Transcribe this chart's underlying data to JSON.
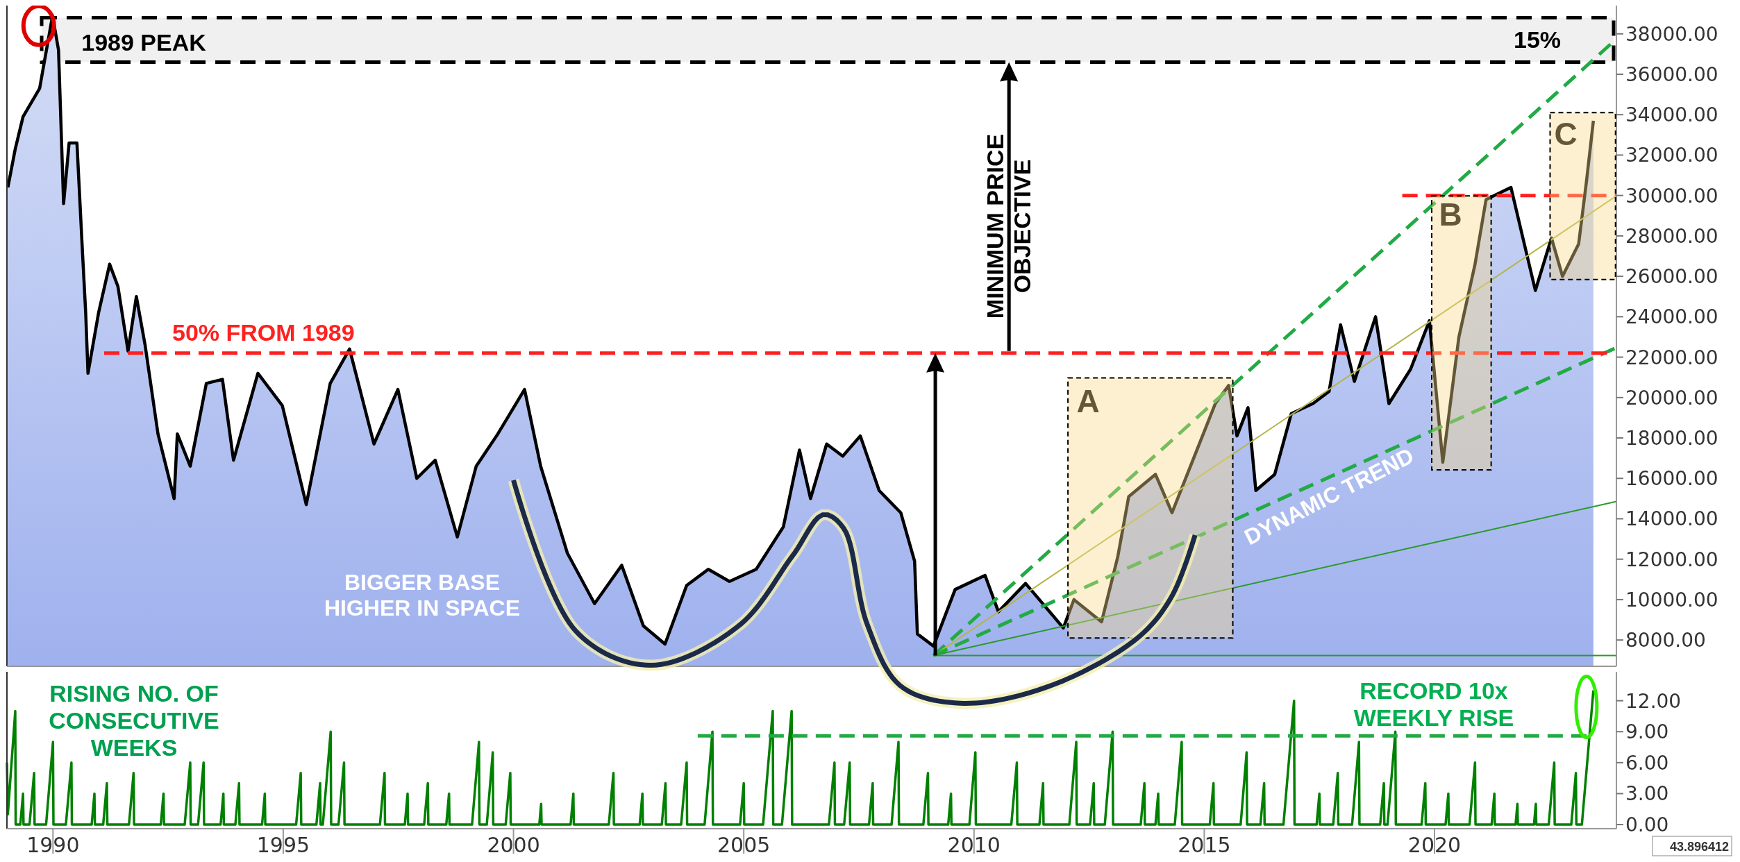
{
  "chart_data": [
    {
      "type": "area",
      "xlim": [
        1989.0,
        2023.95
      ],
      "ylim": [
        6700,
        39400
      ],
      "yticks": [
        {
          "value": 8000,
          "label": "8000.00"
        },
        {
          "value": 10000,
          "label": "10000.00"
        },
        {
          "value": 12000,
          "label": "12000.00"
        },
        {
          "value": 14000,
          "label": "14000.00"
        },
        {
          "value": 16000,
          "label": "16000.00"
        },
        {
          "value": 18000,
          "label": "18000.00"
        },
        {
          "value": 20000,
          "label": "20000.00"
        },
        {
          "value": 22000,
          "label": "22000.00"
        },
        {
          "value": 24000,
          "label": "24000.00"
        },
        {
          "value": 26000,
          "label": "26000.00"
        },
        {
          "value": 28000,
          "label": "28000.00"
        },
        {
          "value": 30000,
          "label": "30000.00"
        },
        {
          "value": 32000,
          "label": "32000.00"
        },
        {
          "value": 34000,
          "label": "34000.00"
        },
        {
          "value": 36000,
          "label": "36000.00"
        },
        {
          "value": 38000,
          "label": "38000.00"
        }
      ],
      "tick_labels": "y",
      "grid": false,
      "series": [
        {
          "color": "#000000",
          "x": [
            1989.02,
            1989.18,
            1989.35,
            1989.71,
            1989.99,
            1990.12,
            1990.23,
            1990.35,
            1990.52,
            1990.64,
            1990.71,
            1990.76,
            1990.99,
            1991.23,
            1991.41,
            1991.63,
            1991.81,
            1992.0,
            1992.28,
            1992.63,
            1992.7,
            1992.98,
            1993.33,
            1993.68,
            1993.92,
            1994.45,
            1994.98,
            1995.5,
            1996.02,
            1996.44,
            1996.97,
            1997.49,
            1997.9,
            1998.3,
            1998.78,
            1999.19,
            1999.66,
            2000.24,
            2000.59,
            2001.17,
            2001.76,
            2002.35,
            2002.82,
            2003.29,
            2003.76,
            2004.23,
            2004.69,
            2005.27,
            2005.86,
            2006.21,
            2006.45,
            2006.8,
            2007.15,
            2007.53,
            2007.94,
            2008.41,
            2008.71,
            2008.77,
            2009.12,
            2009.59,
            2010.24,
            2010.53,
            2011.12,
            2011.94,
            2012.17,
            2012.77,
            2013.12,
            2013.36,
            2013.94,
            2014.3,
            2014.77,
            2015.24,
            2015.53,
            2015.71,
            2015.95,
            2016.12,
            2016.53,
            2016.89,
            2017.36,
            2017.71,
            2017.96,
            2018.26,
            2018.72,
            2019.01,
            2019.48,
            2019.89,
            2020.18,
            2020.53,
            2020.88,
            2021.12,
            2021.66,
            2021.95,
            2022.19,
            2022.54,
            2022.78,
            2023.13,
            2023.3,
            2023.45
          ],
          "values": [
            30400,
            32300,
            33900,
            35300,
            38900,
            37200,
            29600,
            32600,
            32600,
            27200,
            24200,
            21200,
            24200,
            26600,
            25500,
            22300,
            25000,
            22600,
            18200,
            15000,
            18200,
            16600,
            20700,
            20900,
            16900,
            21200,
            19600,
            14700,
            20700,
            22400,
            17700,
            20400,
            16000,
            16900,
            13100,
            16600,
            18200,
            20400,
            16600,
            12300,
            9800,
            11700,
            8700,
            7800,
            10700,
            11500,
            10900,
            11500,
            13600,
            17400,
            15000,
            17700,
            17100,
            18100,
            15400,
            14300,
            11900,
            8300,
            7700,
            10500,
            11200,
            9400,
            10800,
            8600,
            10000,
            8900,
            12100,
            15100,
            16200,
            14300,
            17000,
            19700,
            20600,
            18100,
            19500,
            15400,
            16200,
            19200,
            19700,
            20300,
            23600,
            20800,
            24000,
            19700,
            21400,
            23800,
            16800,
            23000,
            26600,
            29800,
            30400,
            27600,
            25300,
            27900,
            26000,
            27600,
            30700,
            33700
          ]
        },
        {
          "type": "line",
          "color": "#ff2020",
          "line_style": "dashed",
          "x": [
            2019.3,
            2023.95
          ],
          "values": [
            30000,
            30000
          ]
        },
        {
          "type": "line",
          "color": "#22aa44",
          "line_style": "dashed",
          "x": [
            2009.12,
            2023.95
          ],
          "values": [
            7230,
            37750
          ]
        },
        {
          "type": "line",
          "color": "#b5b54a",
          "line_style": "solid",
          "x": [
            2009.12,
            2023.95
          ],
          "values": [
            7230,
            29980
          ]
        },
        {
          "type": "line",
          "color": "#22aa44",
          "line_style": "dashed",
          "x": [
            2009.12,
            2023.95
          ],
          "values": [
            7230,
            22470
          ]
        },
        {
          "type": "line",
          "color": "#2a9a2a",
          "line_style": "solid",
          "x": [
            2009.12,
            2023.95
          ],
          "values": [
            7230,
            14860
          ]
        },
        {
          "type": "line",
          "color": "#2a9a2a",
          "line_style": "solid",
          "x": [
            2009.12,
            2023.95
          ],
          "values": [
            7230,
            7230
          ]
        }
      ],
      "ref_lines": [
        {
          "axis": "y",
          "value": 22200,
          "label": "50% FROM 1989",
          "color": "#ff2020",
          "line_style": "dashed"
        }
      ],
      "bands": [
        {
          "axis": "y",
          "from": 36600,
          "to": 38800,
          "label": "15%",
          "color": "#000000"
        }
      ],
      "annotations": [
        "1989 PEAK",
        "MINIMUM PRICE\nOBJECTIVE",
        "BIGGER BASE\nHIGHER IN SPACE",
        "DYNAMIC TREND",
        "A",
        "B",
        "C"
      ]
    },
    {
      "type": "line",
      "xlim": [
        1989.0,
        2023.95
      ],
      "ylim": [
        -0.4,
        14.8
      ],
      "xticks": [
        1990,
        1995,
        2000,
        2005,
        2010,
        2015,
        2020
      ],
      "yticks": [
        {
          "value": 0,
          "label": "0.00"
        },
        {
          "value": 3,
          "label": "3.00"
        },
        {
          "value": 6,
          "label": "6.00"
        },
        {
          "value": 9,
          "label": "9.00"
        },
        {
          "value": 12,
          "label": "12.00"
        }
      ],
      "grid": false,
      "series": [
        {
          "color": "#008000",
          "line_style": "solid",
          "x": [
            1989.0,
            1989.02,
            1989.18,
            1989.19,
            1989.29,
            1989.35,
            1989.36,
            1989.49,
            1989.59,
            1989.6,
            1989.85,
            1990.0,
            1990.01,
            1990.28,
            1990.4,
            1990.41,
            1990.84,
            1990.9,
            1990.91,
            1991.09,
            1991.17,
            1991.18,
            1991.65,
            1991.75,
            1991.76,
            1992.34,
            1992.4,
            1992.41,
            1992.86,
            1992.98,
            1992.99,
            1993.15,
            1993.27,
            1993.28,
            1993.64,
            1993.7,
            1993.71,
            1993.96,
            1994.04,
            1994.05,
            1994.54,
            1994.6,
            1994.61,
            1995.28,
            1995.38,
            1995.39,
            1995.72,
            1995.8,
            1995.81,
            1995.86,
            1996.03,
            1996.04,
            1996.2,
            1996.32,
            1996.33,
            1997.1,
            1997.2,
            1997.21,
            1997.64,
            1997.7,
            1997.71,
            1998.06,
            1998.14,
            1998.15,
            1998.54,
            1998.6,
            1998.61,
            1999.1,
            1999.25,
            1999.26,
            1999.42,
            1999.55,
            1999.56,
            1999.83,
            1999.93,
            1999.94,
            2000.56,
            2000.6,
            2000.61,
            2001.24,
            2001.3,
            2001.31,
            2002.07,
            2002.17,
            2002.18,
            2002.74,
            2002.8,
            2002.81,
            2003.22,
            2003.3,
            2003.31,
            2003.64,
            2003.76,
            2003.77,
            2004.15,
            2004.32,
            2004.33,
            2004.92,
            2005.0,
            2005.01,
            2005.42,
            2005.63,
            2005.64,
            2005.83,
            2006.04,
            2006.05,
            2006.85,
            2006.97,
            2006.98,
            2007.18,
            2007.3,
            2007.31,
            2007.72,
            2007.8,
            2007.81,
            2008.21,
            2008.36,
            2008.37,
            2008.9,
            2009.0,
            2009.01,
            2009.44,
            2009.5,
            2009.51,
            2009.9,
            2010.03,
            2010.04,
            2010.81,
            2010.93,
            2010.94,
            2011.42,
            2011.5,
            2011.51,
            2012.07,
            2012.22,
            2012.23,
            2012.52,
            2012.6,
            2012.61,
            2012.84,
            2013.01,
            2013.02,
            2013.62,
            2013.7,
            2013.71,
            2013.94,
            2014.0,
            2014.01,
            2014.36,
            2014.51,
            2014.52,
            2015.12,
            2015.2,
            2015.21,
            2015.79,
            2015.92,
            2015.93,
            2016.22,
            2016.3,
            2016.31,
            2016.72,
            2016.95,
            2016.96,
            2017.44,
            2017.5,
            2017.51,
            2017.8,
            2017.9,
            2017.91,
            2018.21,
            2018.36,
            2018.37,
            2018.82,
            2018.9,
            2018.91,
            2018.98,
            2019.15,
            2019.16,
            2019.72,
            2019.8,
            2019.81,
            2020.24,
            2020.3,
            2020.31,
            2020.76,
            2020.88,
            2020.89,
            2021.24,
            2021.3,
            2021.31,
            2021.76,
            2021.8,
            2021.81,
            2022.16,
            2022.2,
            2022.21,
            2022.48,
            2022.6,
            2022.61,
            2022.97,
            2023.07,
            2023.08,
            2023.2,
            2023.45
          ],
          "values": [
            6,
            1,
            11,
            0,
            0,
            3,
            0,
            0,
            5,
            0,
            0,
            8,
            0,
            0,
            6,
            0,
            0,
            3,
            0,
            0,
            4,
            0,
            0,
            5,
            0,
            0,
            3,
            0,
            0,
            6,
            0,
            0,
            6,
            0,
            0,
            3,
            0,
            0,
            4,
            0,
            0,
            3,
            0,
            0,
            5,
            0,
            0,
            4,
            0,
            0,
            9,
            0,
            0,
            6,
            0,
            0,
            5,
            0,
            0,
            3,
            0,
            0,
            4,
            0,
            0,
            3,
            0,
            0,
            8,
            0,
            0,
            7,
            0,
            0,
            5,
            0,
            0,
            2,
            0,
            0,
            3,
            0,
            0,
            5,
            0,
            0,
            3,
            0,
            0,
            4,
            0,
            0,
            6,
            0,
            0,
            9,
            0,
            0,
            4,
            0,
            0,
            11,
            0,
            0,
            11,
            0,
            0,
            6,
            0,
            0,
            6,
            0,
            0,
            4,
            0,
            0,
            8,
            0,
            0,
            5,
            0,
            0,
            3,
            0,
            0,
            7,
            0,
            0,
            6,
            0,
            0,
            4,
            0,
            0,
            8,
            0,
            0,
            4,
            0,
            0,
            9,
            0,
            0,
            4,
            0,
            0,
            3,
            0,
            0,
            8,
            0,
            0,
            4,
            0,
            0,
            7,
            0,
            0,
            4,
            0,
            0,
            12,
            0,
            0,
            3,
            0,
            0,
            5,
            0,
            0,
            8,
            0,
            0,
            4,
            0,
            0,
            9,
            0,
            0,
            4,
            0,
            0,
            3,
            0,
            0,
            6,
            0,
            0,
            3,
            0,
            0,
            2,
            0,
            0,
            2,
            0,
            0,
            6,
            0,
            0,
            5,
            0,
            0,
            13
          ]
        },
        {
          "type": "line",
          "color": "#22aa44",
          "line_style": "dashed",
          "x": [
            2004.0,
            2023.45
          ],
          "values": [
            8.6,
            8.6
          ]
        }
      ],
      "annotations": [
        "RECORD 10x\nWEEKLY RISE",
        "RISING NO. OF\nCONSECUTIVE\nWEEKS",
        "43.896412"
      ]
    }
  ]
}
